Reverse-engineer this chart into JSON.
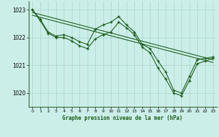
{
  "xlabel": "Graphe pression niveau de la mer (hPa)",
  "background_color": "#cceee8",
  "grid_color": "#aad8d0",
  "line_color": "#1a5c1a",
  "ylim": [
    1019.5,
    1023.3
  ],
  "xlim": [
    -0.5,
    23.5
  ],
  "yticks": [
    1020,
    1021,
    1022,
    1023
  ],
  "xticks": [
    0,
    1,
    2,
    3,
    4,
    5,
    6,
    7,
    8,
    9,
    10,
    11,
    12,
    13,
    14,
    15,
    16,
    17,
    18,
    19,
    20,
    21,
    22,
    23
  ],
  "series1_x": [
    0,
    1,
    2,
    3,
    4,
    5,
    6,
    7,
    8,
    9,
    10,
    11,
    12,
    13,
    14,
    15,
    16,
    17,
    18,
    19,
    20,
    21,
    22,
    23
  ],
  "series1_y": [
    1023.0,
    1022.65,
    1022.2,
    1022.05,
    1022.1,
    1022.0,
    1021.85,
    1021.75,
    1022.3,
    1022.45,
    1022.55,
    1022.75,
    1022.45,
    1022.2,
    1021.75,
    1021.6,
    1021.15,
    1020.75,
    1020.1,
    1020.0,
    1020.6,
    1021.2,
    1021.25,
    1021.3
  ],
  "series2_x": [
    0,
    1,
    2,
    3,
    4,
    5,
    6,
    7,
    8,
    9,
    10,
    11,
    12,
    13,
    14,
    15,
    16,
    17,
    18,
    19,
    20,
    21,
    22,
    23
  ],
  "series2_y": [
    1023.0,
    1022.6,
    1022.15,
    1022.0,
    1022.0,
    1021.88,
    1021.7,
    1021.6,
    1021.95,
    1022.1,
    1022.2,
    1022.55,
    1022.35,
    1022.1,
    1021.65,
    1021.45,
    1020.9,
    1020.5,
    1020.0,
    1019.9,
    1020.45,
    1021.05,
    1021.15,
    1021.25
  ],
  "trend_x": [
    0,
    23
  ],
  "trend_y": [
    1022.9,
    1021.2
  ],
  "trend2_x": [
    0,
    23
  ],
  "trend2_y": [
    1022.8,
    1021.1
  ]
}
